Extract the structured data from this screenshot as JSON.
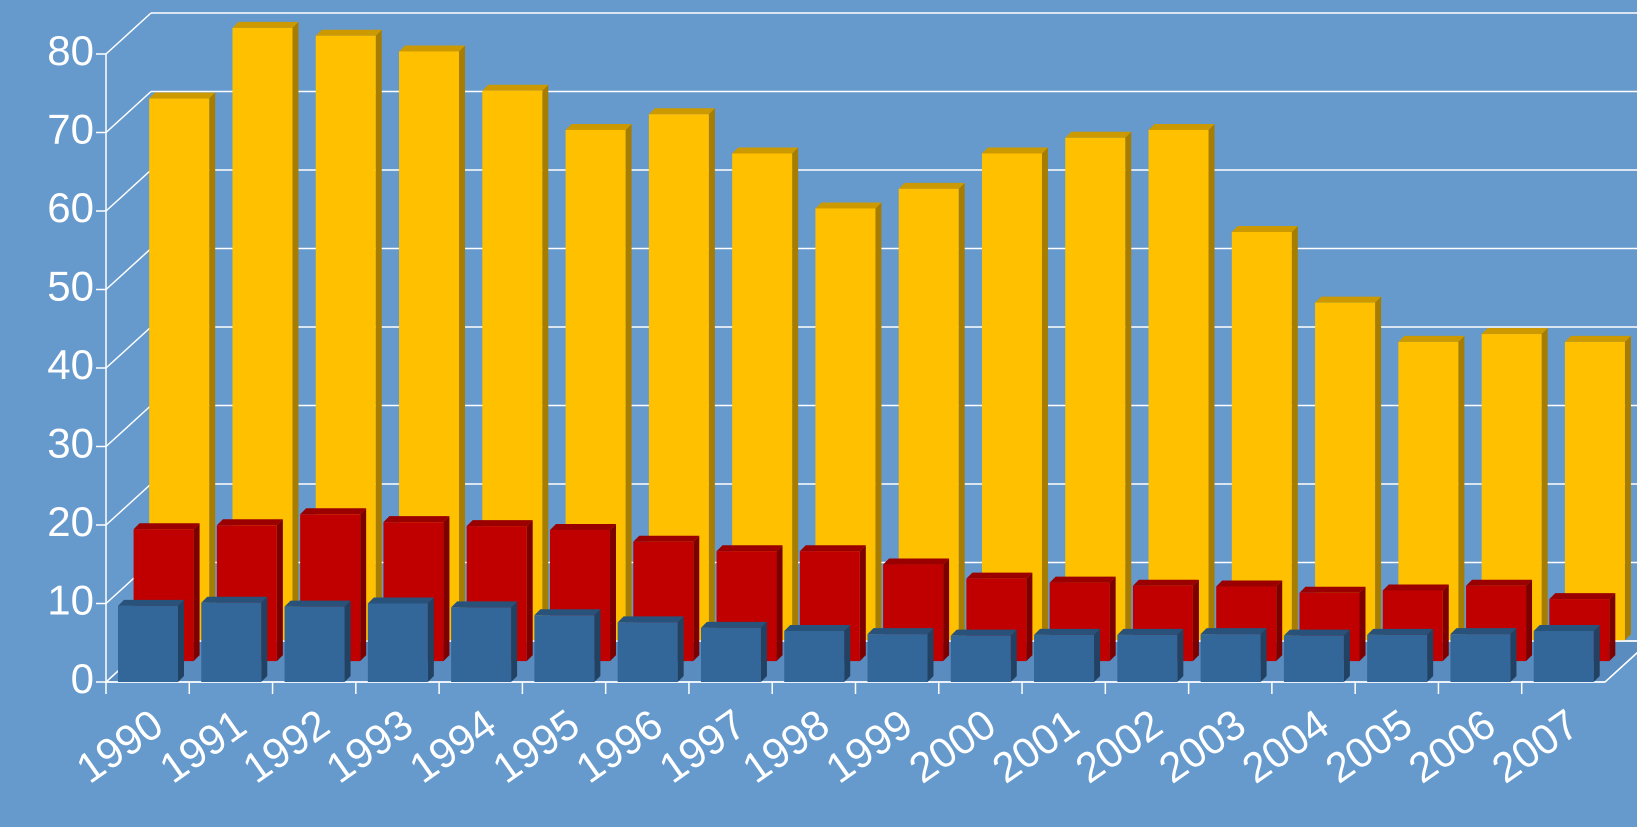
{
  "chart_data": {
    "type": "bar3d",
    "categories": [
      "1990",
      "1991",
      "1992",
      "1993",
      "1994",
      "1995",
      "1996",
      "1997",
      "1998",
      "1999",
      "2000",
      "2001",
      "2002",
      "2003",
      "2004",
      "2005",
      "2006",
      "2007"
    ],
    "series": [
      {
        "color": "#336699",
        "values": [
          9.7,
          10.1,
          9.6,
          10,
          9.5,
          8.5,
          7.6,
          6.9,
          6.5,
          6.1,
          5.9,
          6,
          6,
          6.1,
          5.9,
          6,
          6.1,
          6.5
        ]
      },
      {
        "color": "#c00000",
        "values": [
          16.8,
          17.3,
          18.7,
          17.7,
          17.2,
          16.7,
          15.2,
          14,
          14,
          12.3,
          10.5,
          10,
          9.6,
          9.5,
          8.7,
          9,
          9.6,
          7.9
        ]
      },
      {
        "color": "#ffc000",
        "values": [
          69,
          78,
          77,
          75,
          70,
          65,
          67,
          62,
          55,
          57.5,
          62,
          64,
          65,
          52,
          43,
          38,
          39,
          38
        ]
      }
    ],
    "ylim": [
      0,
      80
    ],
    "yticks": [
      0,
      10,
      20,
      30,
      40,
      50,
      60,
      70,
      80
    ],
    "grid": true
  }
}
